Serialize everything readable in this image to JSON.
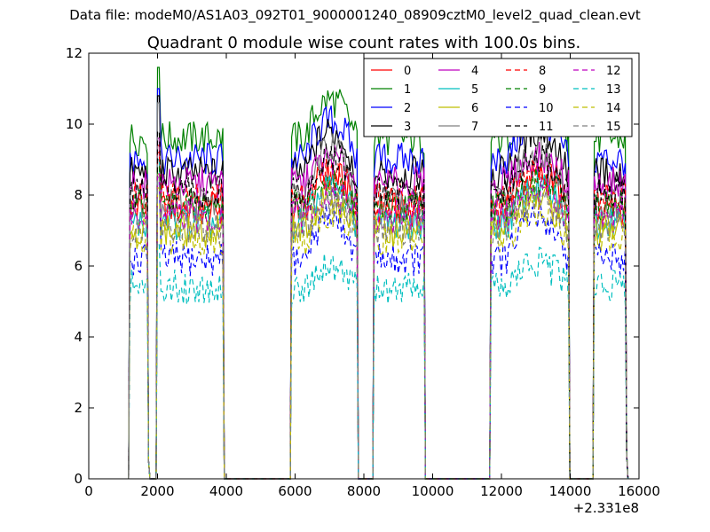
{
  "header": {
    "data_file_label": "Data file: modeM0/AS1A03_092T01_9000001240_08909cztM0_level2_quad_clean.evt"
  },
  "chart_data": {
    "type": "line",
    "title": "Quadrant 0 module wise count rates with 100.0s bins.",
    "xlabel": "",
    "ylabel": "",
    "x_offset_label": "+2.331e8",
    "xlim": [
      0,
      16000
    ],
    "ylim": [
      0,
      12
    ],
    "x_ticks": [
      0,
      2000,
      4000,
      6000,
      8000,
      10000,
      12000,
      14000,
      16000
    ],
    "y_ticks": [
      0,
      2,
      4,
      6,
      8,
      10,
      12
    ],
    "x_tick_labels": [
      "0",
      "2000",
      "4000",
      "6000",
      "8000",
      "10000",
      "12000",
      "14000",
      "16000"
    ],
    "y_tick_labels": [
      "0",
      "2",
      "4",
      "6",
      "8",
      "10",
      "12"
    ],
    "legend_position": "top-right",
    "segments": [
      {
        "start": 1200,
        "end": 1700,
        "drop_to": 0.5
      },
      {
        "start": 2000,
        "end": 3900,
        "drop_to": 0.0
      },
      {
        "start": 5900,
        "end": 7800,
        "drop_to": 0.0
      },
      {
        "start": 8300,
        "end": 9750,
        "drop_to": 0.0
      },
      {
        "start": 11700,
        "end": 13950,
        "drop_to": 0.0
      },
      {
        "start": 14700,
        "end": 15600,
        "drop_to": 0.7
      }
    ],
    "series": [
      {
        "name": "0",
        "color": "#ff0000",
        "dash": "solid",
        "level": 7.6,
        "peak": 9.4
      },
      {
        "name": "1",
        "color": "#008000",
        "dash": "solid",
        "level": 9.6,
        "peak": 11.6
      },
      {
        "name": "2",
        "color": "#0000ff",
        "dash": "solid",
        "level": 9.0,
        "peak": 11.0
      },
      {
        "name": "3",
        "color": "#000000",
        "dash": "solid",
        "level": 8.6,
        "peak": 10.8
      },
      {
        "name": "4",
        "color": "#bf00bf",
        "dash": "solid",
        "level": 8.3,
        "peak": 9.6
      },
      {
        "name": "5",
        "color": "#00bfbf",
        "dash": "solid",
        "level": 7.2,
        "peak": 9.0
      },
      {
        "name": "6",
        "color": "#bfbf00",
        "dash": "solid",
        "level": 7.0,
        "peak": 8.6
      },
      {
        "name": "7",
        "color": "#808080",
        "dash": "solid",
        "level": 7.8,
        "peak": 10.6
      },
      {
        "name": "8",
        "color": "#ff0000",
        "dash": "dashed",
        "level": 7.9,
        "peak": 9.2
      },
      {
        "name": "9",
        "color": "#008000",
        "dash": "dashed",
        "level": 7.7,
        "peak": 8.8
      },
      {
        "name": "10",
        "color": "#0000ff",
        "dash": "dashed",
        "level": 6.2,
        "peak": 8.4
      },
      {
        "name": "11",
        "color": "#000000",
        "dash": "dashed",
        "level": 8.0,
        "peak": 9.8
      },
      {
        "name": "12",
        "color": "#bf00bf",
        "dash": "dashed",
        "level": 7.4,
        "peak": 8.6
      },
      {
        "name": "13",
        "color": "#00bfbf",
        "dash": "dashed",
        "level": 5.4,
        "peak": 6.6
      },
      {
        "name": "14",
        "color": "#bfbf00",
        "dash": "dashed",
        "level": 6.8,
        "peak": 8.2
      },
      {
        "name": "15",
        "color": "#808080",
        "dash": "dashed",
        "level": 7.1,
        "peak": 8.5
      }
    ]
  }
}
